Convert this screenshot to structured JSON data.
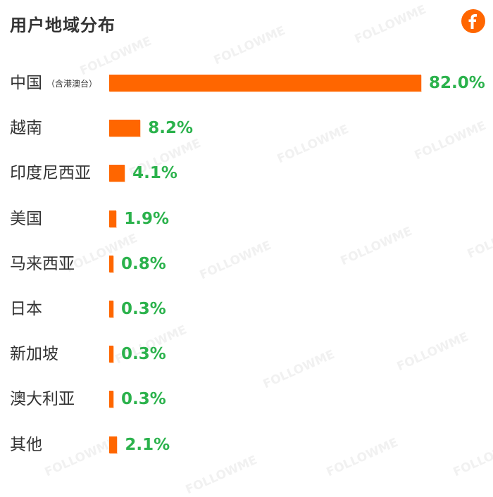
{
  "title": "用户地域分布",
  "logo": {
    "icon": "followme-f-logo-icon",
    "color": "#ff6600"
  },
  "watermark": {
    "text": "FOLLOWME"
  },
  "colors": {
    "bar": "#ff6600",
    "value_text": "#2bb24c",
    "label_text": "#333333"
  },
  "chart_data": {
    "type": "bar",
    "orientation": "horizontal",
    "title": "用户地域分布",
    "categories": [
      {
        "name": "中国",
        "note": "（含港澳台）"
      },
      {
        "name": "越南",
        "note": ""
      },
      {
        "name": "印度尼西亚",
        "note": ""
      },
      {
        "name": "美国",
        "note": ""
      },
      {
        "name": "马来西亚",
        "note": ""
      },
      {
        "name": "日本",
        "note": ""
      },
      {
        "name": "新加坡",
        "note": ""
      },
      {
        "name": "澳大利亚",
        "note": ""
      },
      {
        "name": "其他",
        "note": ""
      }
    ],
    "values": [
      82.0,
      8.2,
      4.1,
      1.9,
      0.8,
      0.3,
      0.3,
      0.3,
      2.1
    ],
    "value_labels": [
      "82.0%",
      "8.2%",
      "4.1%",
      "1.9%",
      "0.8%",
      "0.3%",
      "0.3%",
      "0.3%",
      "2.1%"
    ],
    "unit": "%",
    "grid": false,
    "legend": "none"
  }
}
